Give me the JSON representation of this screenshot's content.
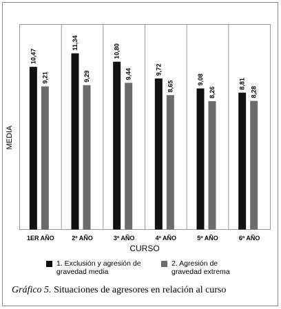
{
  "chart_data": {
    "type": "bar",
    "x_label": "CURSO",
    "y_label": "MEDIA",
    "categories": [
      "1ER AÑO",
      "2º AÑO",
      "3º AÑO",
      "4º AÑO",
      "5º AÑO",
      "6º AÑO"
    ],
    "series": [
      {
        "name": "1. Exclusión y agresión de gravedad media",
        "color": "#111111",
        "values": [
          10.47,
          11.34,
          10.8,
          9.72,
          9.08,
          8.81
        ],
        "value_labels": [
          "10,47",
          "11,34",
          "10,80",
          "9,72",
          "9,08",
          "8,81"
        ]
      },
      {
        "name": "2. Agresión de gravedad extrema",
        "color": "#6b6b6b",
        "values": [
          9.21,
          9.29,
          9.44,
          8.65,
          8.26,
          8.28
        ],
        "value_labels": [
          "9,21",
          "9,29",
          "9,44",
          "8,65",
          "8,26",
          "8,28"
        ]
      }
    ],
    "ylim": [
      0,
      13.2
    ]
  },
  "caption": {
    "label": "Gráfico 5.",
    "text": "Situaciones de agresores en relación al curso"
  }
}
